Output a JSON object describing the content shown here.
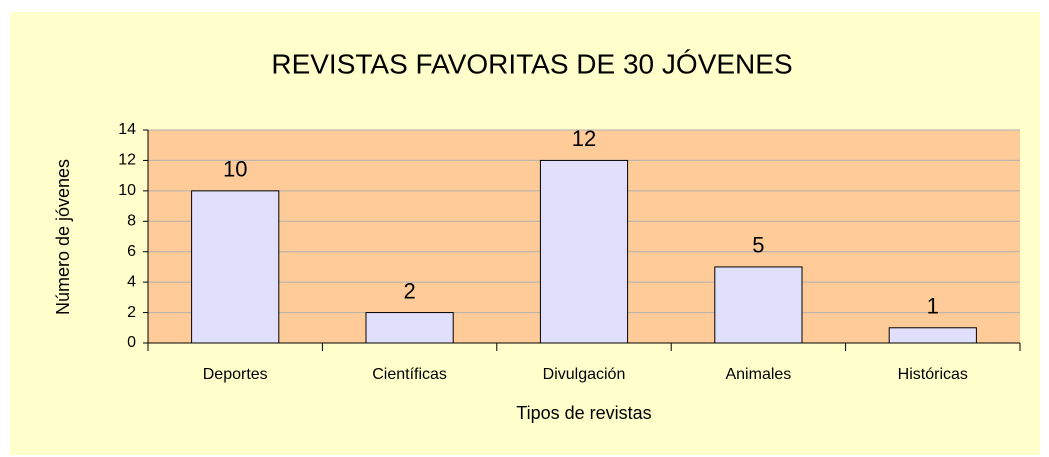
{
  "chart_data": {
    "type": "bar",
    "title": "REVISTAS FAVORITAS DE 30 JÓVENES",
    "x_label": "Tipos de revistas",
    "y_label": "Número de jóvenes",
    "categories": [
      "Deportes",
      "Científicas",
      "Divulgación",
      "Animales",
      "Históricas"
    ],
    "values": [
      10,
      2,
      12,
      5,
      1
    ],
    "color": "#e0e0fc",
    "plot_background": "#ffcc99",
    "background": "#ffffcc",
    "ylim": [
      0,
      14
    ],
    "yticks": [
      0,
      2,
      4,
      6,
      8,
      10,
      12,
      14
    ],
    "grid": true
  }
}
